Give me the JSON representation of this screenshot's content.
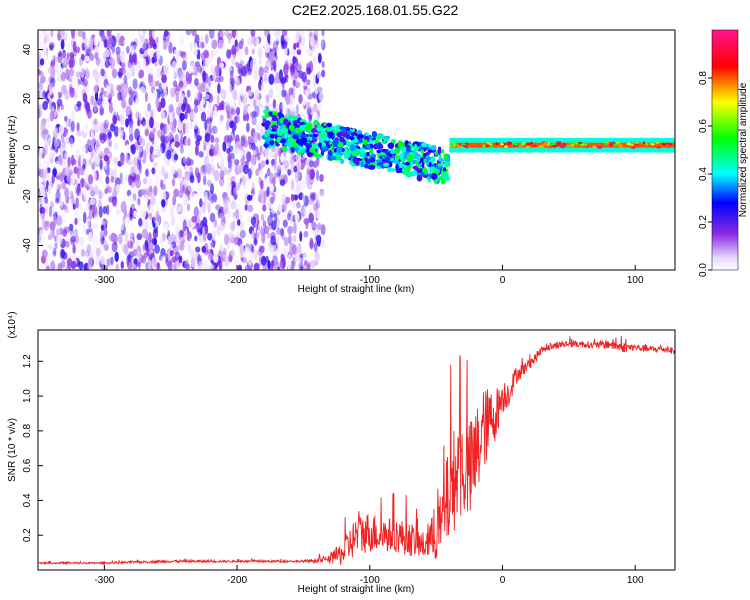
{
  "title": "C2E2.2025.168.01.55.G22",
  "chart_data": [
    {
      "type": "heatmap",
      "xlabel": "Height of straight line (km)",
      "ylabel": "Frequency (Hz)",
      "xlim": [
        -350,
        130
      ],
      "ylim": [
        -50,
        48
      ],
      "xticks": [
        -300,
        -200,
        -100,
        0,
        100
      ],
      "yticks": [
        -40,
        -20,
        0,
        20,
        40
      ],
      "colorbar": {
        "label": "Normalized spectral amplitude",
        "range": [
          0,
          1
        ],
        "ticks": [
          0.0,
          0.2,
          0.4,
          0.6,
          0.8
        ],
        "colors": [
          "#ffffff",
          "#8a2be2",
          "#0000ff",
          "#00ffff",
          "#00ff00",
          "#ffff00",
          "#ff0000",
          "#ff1493"
        ]
      },
      "regions": [
        {
          "x": [
            -350,
            -135
          ],
          "freq": [
            -50,
            48
          ],
          "amplitude": [
            0.0,
            0.25
          ]
        },
        {
          "x": [
            -180,
            -40
          ],
          "freq_center": [
            8,
            -8
          ],
          "amplitude": [
            0.2,
            0.55
          ]
        },
        {
          "x": [
            -40,
            130
          ],
          "freq_center": 1,
          "amplitude": [
            0.4,
            1.0
          ]
        }
      ]
    },
    {
      "type": "line",
      "xlabel": "Height of straight line (km)",
      "ylabel": "SNR (10 * v/v)",
      "y_multiplier": "(x10⁴)",
      "xlim": [
        -350,
        130
      ],
      "ylim": [
        0,
        1.38
      ],
      "xticks": [
        -300,
        -200,
        -100,
        0,
        100
      ],
      "yticks": [
        0.2,
        0.4,
        0.6,
        0.8,
        1.0,
        1.2
      ],
      "series": [
        {
          "color": "#ee2222",
          "x": [
            -350,
            -300,
            -250,
            -200,
            -150,
            -130,
            -120,
            -110,
            -100,
            -90,
            -80,
            -70,
            -60,
            -50,
            -45,
            -40,
            -35,
            -30,
            -25,
            -20,
            -15,
            -10,
            -5,
            0,
            5,
            10,
            15,
            20,
            25,
            30,
            35,
            40,
            50,
            60,
            70,
            80,
            90,
            100,
            110,
            120,
            130
          ],
          "y": [
            0.04,
            0.04,
            0.05,
            0.05,
            0.05,
            0.06,
            0.1,
            0.2,
            0.22,
            0.2,
            0.2,
            0.18,
            0.14,
            0.2,
            0.28,
            0.45,
            0.55,
            0.6,
            0.55,
            0.65,
            0.8,
            0.85,
            0.9,
            1.0,
            1.02,
            1.12,
            1.15,
            1.18,
            1.22,
            1.27,
            1.28,
            1.29,
            1.3,
            1.3,
            1.29,
            1.3,
            1.28,
            1.28,
            1.27,
            1.27,
            1.26
          ],
          "noise": [
            0.005,
            0.005,
            0.008,
            0.006,
            0.006,
            0.02,
            0.08,
            0.12,
            0.12,
            0.1,
            0.1,
            0.1,
            0.08,
            0.15,
            0.2,
            0.3,
            0.3,
            0.3,
            0.3,
            0.3,
            0.25,
            0.2,
            0.15,
            0.1,
            0.08,
            0.05,
            0.04,
            0.03,
            0.03,
            0.02,
            0.02,
            0.02,
            0.02,
            0.02,
            0.02,
            0.03,
            0.03,
            0.02,
            0.02,
            0.02,
            0.02
          ]
        }
      ]
    }
  ]
}
